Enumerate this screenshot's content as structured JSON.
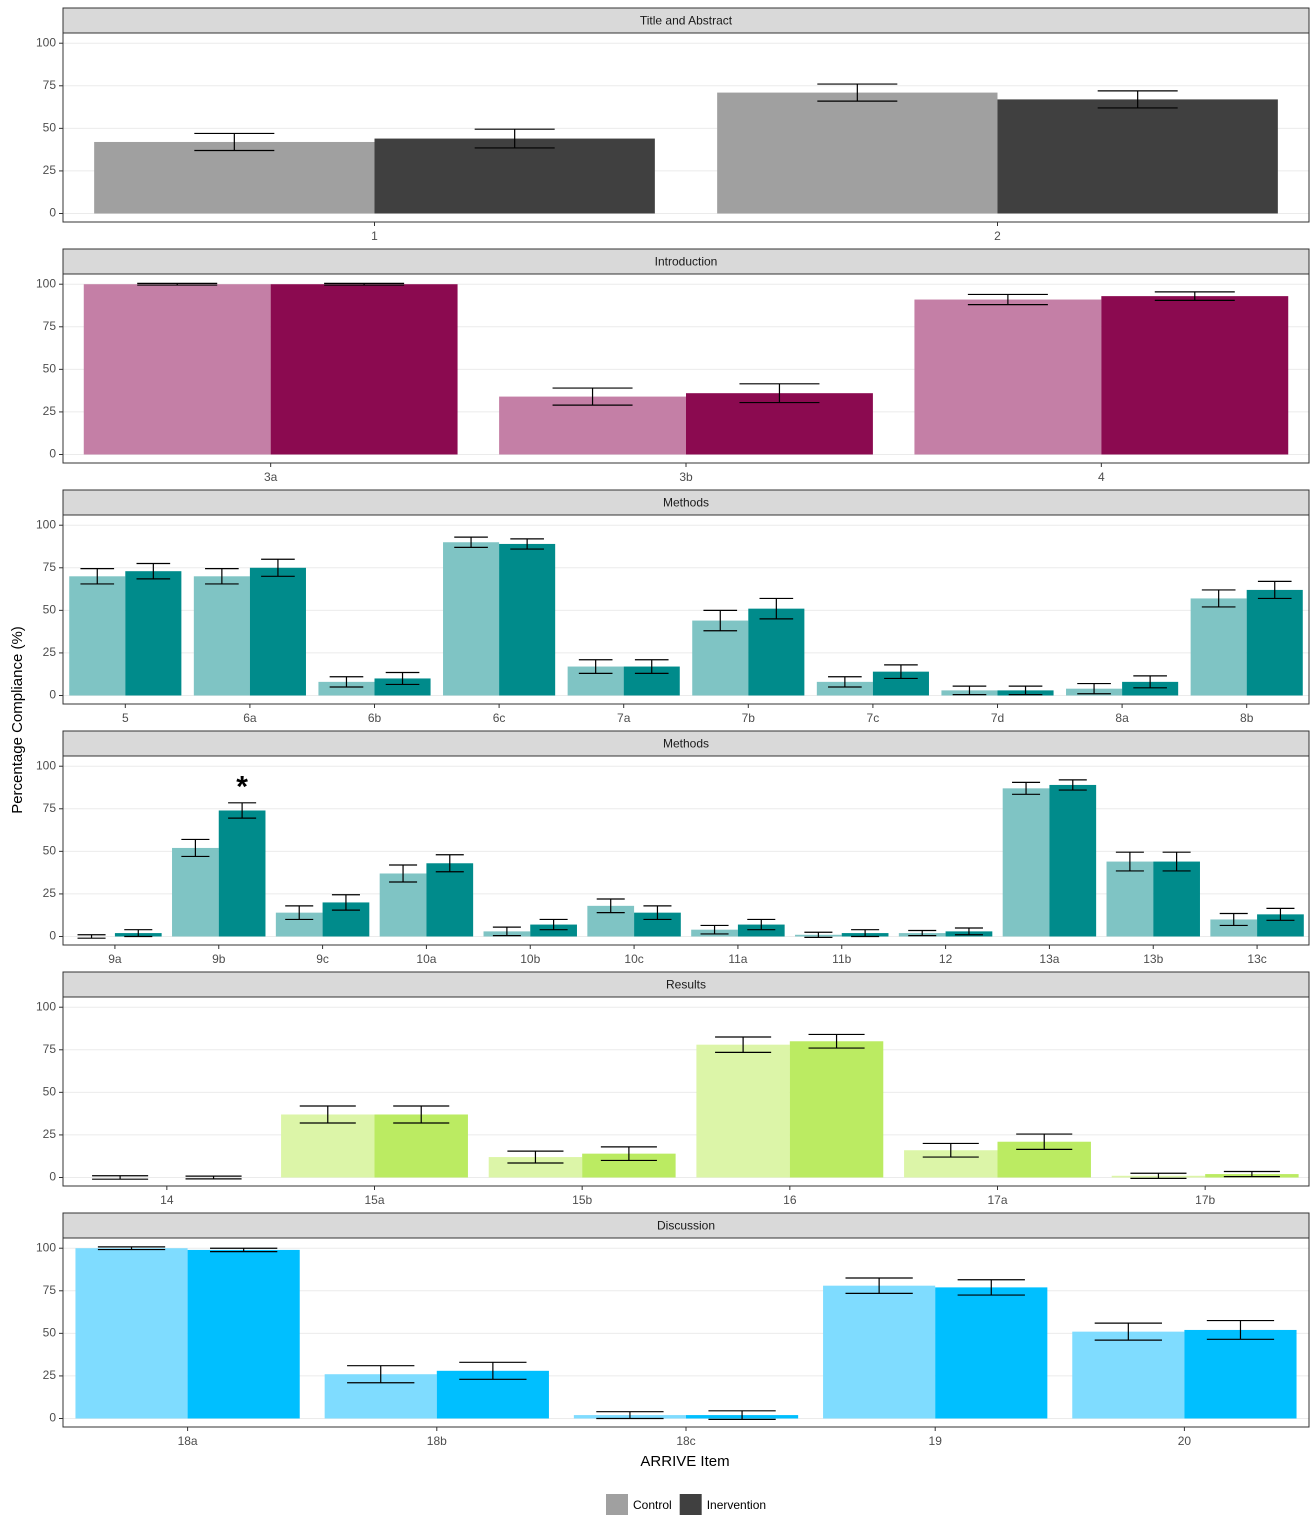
{
  "ylabel": "Percentage Compliance (%)",
  "xlabel": "ARRIVE Item",
  "legend": [
    {
      "name": "Control",
      "color": "#a0a0a0"
    },
    {
      "name": "Inervention",
      "color": "#404040"
    }
  ],
  "chart_data": [
    {
      "type": "bar",
      "title": "Title and Abstract",
      "categories": [
        "1",
        "2"
      ],
      "series": [
        {
          "color": "#a0a0a0",
          "values": [
            42,
            71
          ],
          "errors": [
            5,
            5
          ]
        },
        {
          "color": "#404040",
          "values": [
            44,
            67
          ],
          "errors": [
            5.5,
            5
          ]
        }
      ],
      "ylim": [
        -5,
        106
      ],
      "yticks": [
        0,
        25,
        50,
        75,
        100
      ],
      "grid": true
    },
    {
      "type": "bar",
      "title": "Introduction",
      "categories": [
        "3a",
        "3b",
        "4"
      ],
      "series": [
        {
          "color": "#c47fa6",
          "values": [
            100,
            34,
            91
          ],
          "errors": [
            0.5,
            5,
            3
          ]
        },
        {
          "color": "#8b0a50",
          "values": [
            100,
            36,
            93
          ],
          "errors": [
            0.5,
            5.5,
            2.5
          ]
        }
      ],
      "ylim": [
        -5,
        106
      ],
      "yticks": [
        0,
        25,
        50,
        75,
        100
      ],
      "grid": true
    },
    {
      "type": "bar",
      "title": "Methods",
      "categories": [
        "5",
        "6a",
        "6b",
        "6c",
        "7a",
        "7b",
        "7c",
        "7d",
        "8a",
        "8b"
      ],
      "series": [
        {
          "color": "#7fc4c4",
          "values": [
            70,
            70,
            8,
            90,
            17,
            44,
            8,
            3,
            4,
            57
          ],
          "errors": [
            4.5,
            4.5,
            3,
            3,
            4,
            6,
            3,
            2.5,
            3,
            5
          ]
        },
        {
          "color": "#008b8b",
          "values": [
            73,
            75,
            10,
            89,
            17,
            51,
            14,
            3,
            8,
            62
          ],
          "errors": [
            4.5,
            5,
            3.5,
            3,
            4,
            6,
            4,
            2.5,
            3.5,
            5
          ]
        }
      ],
      "ylim": [
        -5,
        106
      ],
      "yticks": [
        0,
        25,
        50,
        75,
        100
      ],
      "grid": true
    },
    {
      "type": "bar",
      "title": "Methods",
      "categories": [
        "9a",
        "9b",
        "9c",
        "10a",
        "10b",
        "10c",
        "11a",
        "11b",
        "12",
        "13a",
        "13b",
        "13c"
      ],
      "series": [
        {
          "color": "#7fc4c4",
          "values": [
            0,
            52,
            14,
            37,
            3,
            18,
            4,
            1,
            2,
            87,
            44,
            10
          ],
          "errors": [
            1,
            5,
            4,
            5,
            2.5,
            4,
            2.5,
            1.5,
            1.5,
            3.5,
            5.5,
            3.5
          ]
        },
        {
          "color": "#008b8b",
          "values": [
            2,
            74,
            20,
            43,
            7,
            14,
            7,
            2,
            3,
            89,
            44,
            13
          ],
          "errors": [
            2,
            4.5,
            4.5,
            5,
            3,
            4,
            3,
            2,
            2,
            3,
            5.5,
            3.5
          ]
        }
      ],
      "annotations": [
        {
          "text": "*",
          "x": "9b"
        }
      ],
      "ylim": [
        -5,
        106
      ],
      "yticks": [
        0,
        25,
        50,
        75,
        100
      ],
      "grid": true
    },
    {
      "type": "bar",
      "title": "Results",
      "categories": [
        "14",
        "15a",
        "15b",
        "16",
        "17a",
        "17b"
      ],
      "series": [
        {
          "color": "#dcf5a8",
          "values": [
            0,
            37,
            12,
            78,
            16,
            1
          ],
          "errors": [
            1,
            5,
            3.5,
            4.5,
            4,
            1.5
          ]
        },
        {
          "color": "#bbeb62",
          "values": [
            0,
            37,
            14,
            80,
            21,
            2
          ],
          "errors": [
            0.8,
            5,
            4,
            4,
            4.5,
            1.5
          ]
        }
      ],
      "ylim": [
        -5,
        106
      ],
      "yticks": [
        0,
        25,
        50,
        75,
        100
      ],
      "grid": true
    },
    {
      "type": "bar",
      "title": "Discussion",
      "categories": [
        "18a",
        "18b",
        "18c",
        "19",
        "20"
      ],
      "series": [
        {
          "color": "#7fdcff",
          "values": [
            100,
            26,
            2,
            78,
            51
          ],
          "errors": [
            0.8,
            5,
            2,
            4.5,
            5
          ]
        },
        {
          "color": "#00bfff",
          "values": [
            99,
            28,
            2,
            77,
            52
          ],
          "errors": [
            1,
            5,
            2.5,
            4.5,
            5.5
          ]
        }
      ],
      "ylim": [
        -5,
        106
      ],
      "yticks": [
        0,
        25,
        50,
        75,
        100
      ],
      "grid": true
    }
  ]
}
